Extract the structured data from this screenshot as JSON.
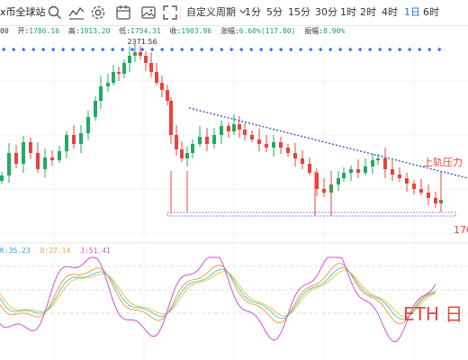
{
  "toolbar": {
    "logo_text": "x币全球站",
    "custom_period": "自定义周期",
    "timeframes": [
      "1分",
      "5分",
      "15分",
      "30分",
      "1时",
      "2时",
      "4时",
      "1日",
      "6时"
    ],
    "active_timeframe": "1日",
    "icons": [
      "search-icon",
      "indicator-icon",
      "settings-icon",
      "calendar-icon",
      "image-icon",
      "chevron-down-icon"
    ]
  },
  "ohlc": {
    "open_label": "开:",
    "open": "1786.16",
    "high_label": "高:",
    "high": "1913.20",
    "low_label": "低:",
    "low": "1754.31",
    "close_label": "收:",
    "close": "1903.96",
    "change_label": "涨幅:",
    "change": "6.60%(117.80)",
    "amplitude_label": "振幅:",
    "amplitude": "8.90%",
    "left_cut": "00"
  },
  "annotations": {
    "high_price": "2371.56",
    "resistance_label": "上轨压力",
    "support_label": "170",
    "watermark": "ETH 日"
  },
  "kdj": {
    "k_label": "K:",
    "k": "35.23",
    "d_label": "D:",
    "d": "27.14",
    "j_label": "J:",
    "j": "51.41"
  },
  "colors": {
    "up": "#22a966",
    "down": "#e8443c",
    "trendline": "#3a57c8",
    "support": "#9b7fe0",
    "annotation": "#e8443c",
    "k_line": "#f2a13a",
    "d_line": "#e8c93c",
    "j_line": "#d64fd6",
    "k_text": "#2d9cdb",
    "d_text": "#e3a83a",
    "j_text": "#d64fd6"
  }
}
